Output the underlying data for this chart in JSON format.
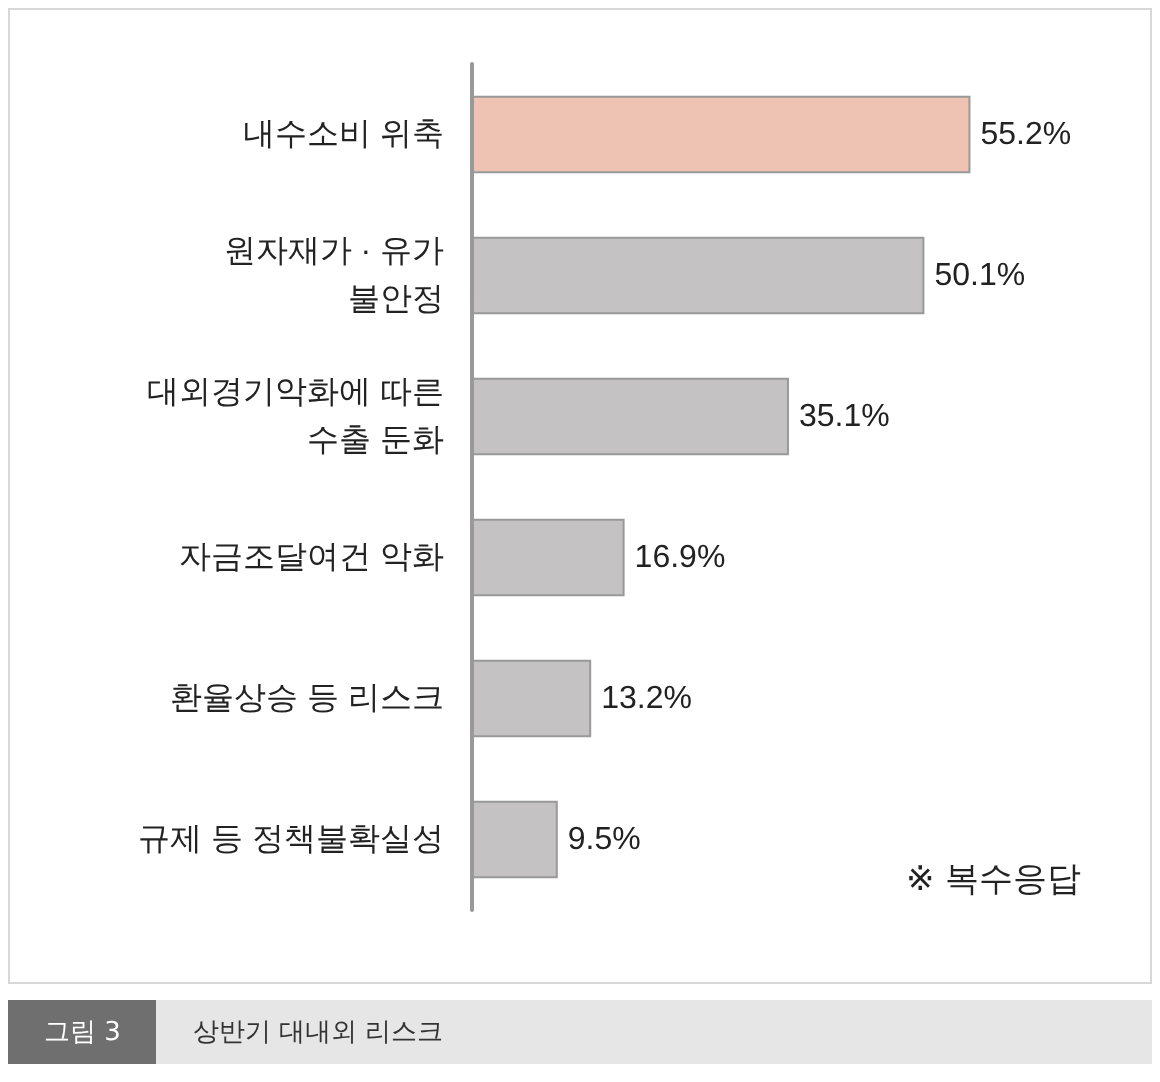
{
  "chart_data": {
    "type": "bar",
    "orientation": "horizontal",
    "title": "상반기 대내외 리스크",
    "subtitle": "그림 3",
    "categories": [
      "내수소비 위축",
      "원자재가 · 유가\n불안정",
      "대외경기악화에 따른\n수출 둔화",
      "자금조달여건 악화",
      "환율상승 등 리스크",
      "규제 등 정책불확실성"
    ],
    "values": [
      55.2,
      50.1,
      35.1,
      16.9,
      13.2,
      9.5
    ],
    "colors": [
      "#efc3b3",
      "#c4c2c2",
      "#c4c2c2",
      "#c4c2c2",
      "#c4c2c2",
      "#c4c2c2"
    ],
    "value_labels": [
      "55.2%",
      "50.1%",
      "35.1%",
      "16.9%",
      "13.2%",
      "9.5%"
    ],
    "annotations": [
      "※ 복수응답"
    ]
  }
}
